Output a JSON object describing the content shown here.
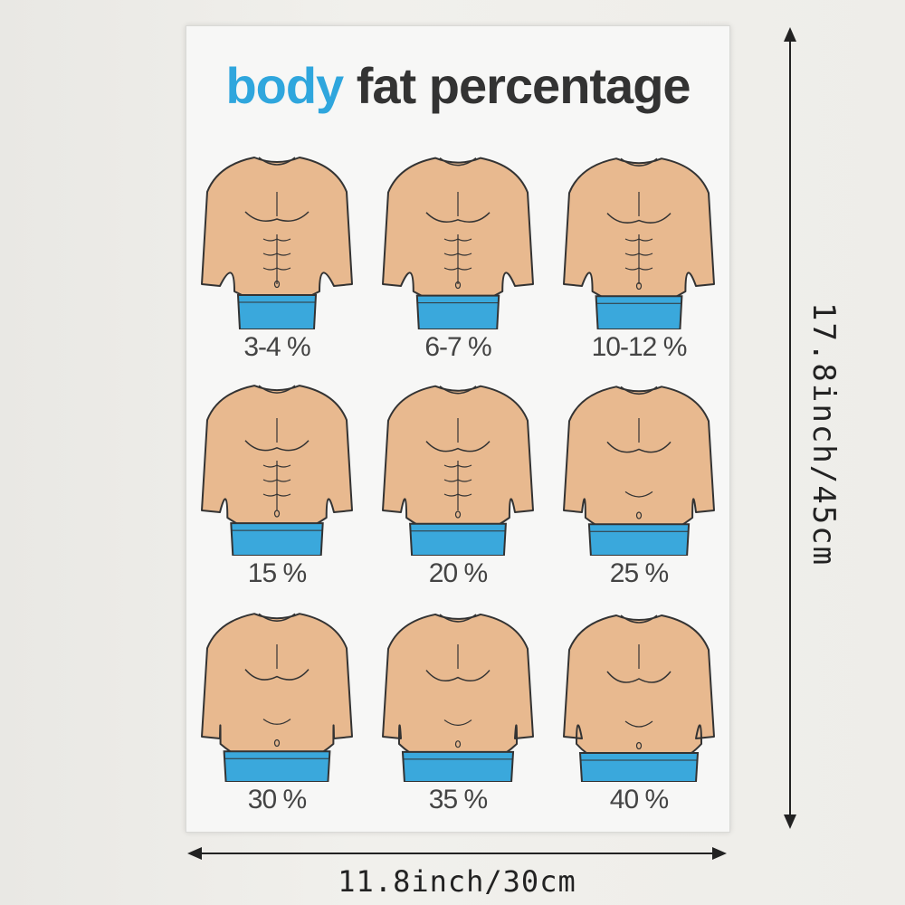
{
  "poster": {
    "title_accent": "body",
    "title_rest": " fat percentage",
    "colors": {
      "accent": "#2fa6dd",
      "skin": "#e8b98f",
      "shorts": "#3aa8dc",
      "outline": "#333333"
    },
    "figures": [
      {
        "label": "3-4 %"
      },
      {
        "label": "6-7 %"
      },
      {
        "label": "10-12 %"
      },
      {
        "label": "15 %"
      },
      {
        "label": "20 %"
      },
      {
        "label": "25 %"
      },
      {
        "label": "30 %"
      },
      {
        "label": "35 %"
      },
      {
        "label": "40 %"
      }
    ]
  },
  "dimensions": {
    "height": "17.8inch/45cm",
    "width": "11.8inch/30cm"
  }
}
